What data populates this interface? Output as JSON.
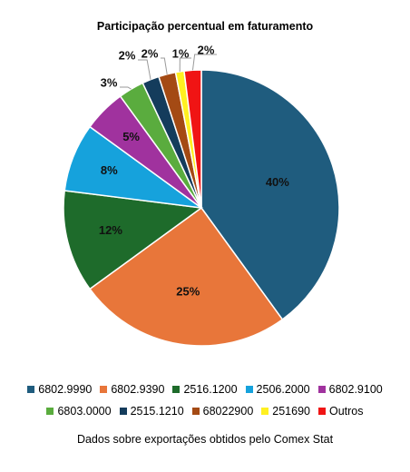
{
  "chart_data": {
    "type": "pie",
    "title": "Participação percentual em faturamento",
    "slices": [
      {
        "label": "6802.9990",
        "value": 40,
        "display": "40%",
        "color": "#1f5c7e"
      },
      {
        "label": "6802.9390",
        "value": 25,
        "display": "25%",
        "color": "#e8763a"
      },
      {
        "label": "2516.1200",
        "value": 12,
        "display": "12%",
        "color": "#1e6b2b"
      },
      {
        "label": "2506.2000",
        "value": 8,
        "display": "8%",
        "color": "#16a2dc"
      },
      {
        "label": "6802.9100",
        "value": 5,
        "display": "5%",
        "color": "#a0329e"
      },
      {
        "label": "6803.0000",
        "value": 3,
        "display": "3%",
        "color": "#5aac3e"
      },
      {
        "label": "2515.1210",
        "value": 2,
        "display": "2%",
        "color": "#143c5c"
      },
      {
        "label": "68022900",
        "value": 2,
        "display": "2%",
        "color": "#a44a14"
      },
      {
        "label": "251690",
        "value": 1,
        "display": "1%",
        "color": "#fff021"
      },
      {
        "label": "Outros",
        "value": 2,
        "display": "2%",
        "color": "#f01414"
      }
    ],
    "legend_placement": "bottom"
  },
  "caption": "Dados sobre exportações obtidos pelo Comex Stat"
}
